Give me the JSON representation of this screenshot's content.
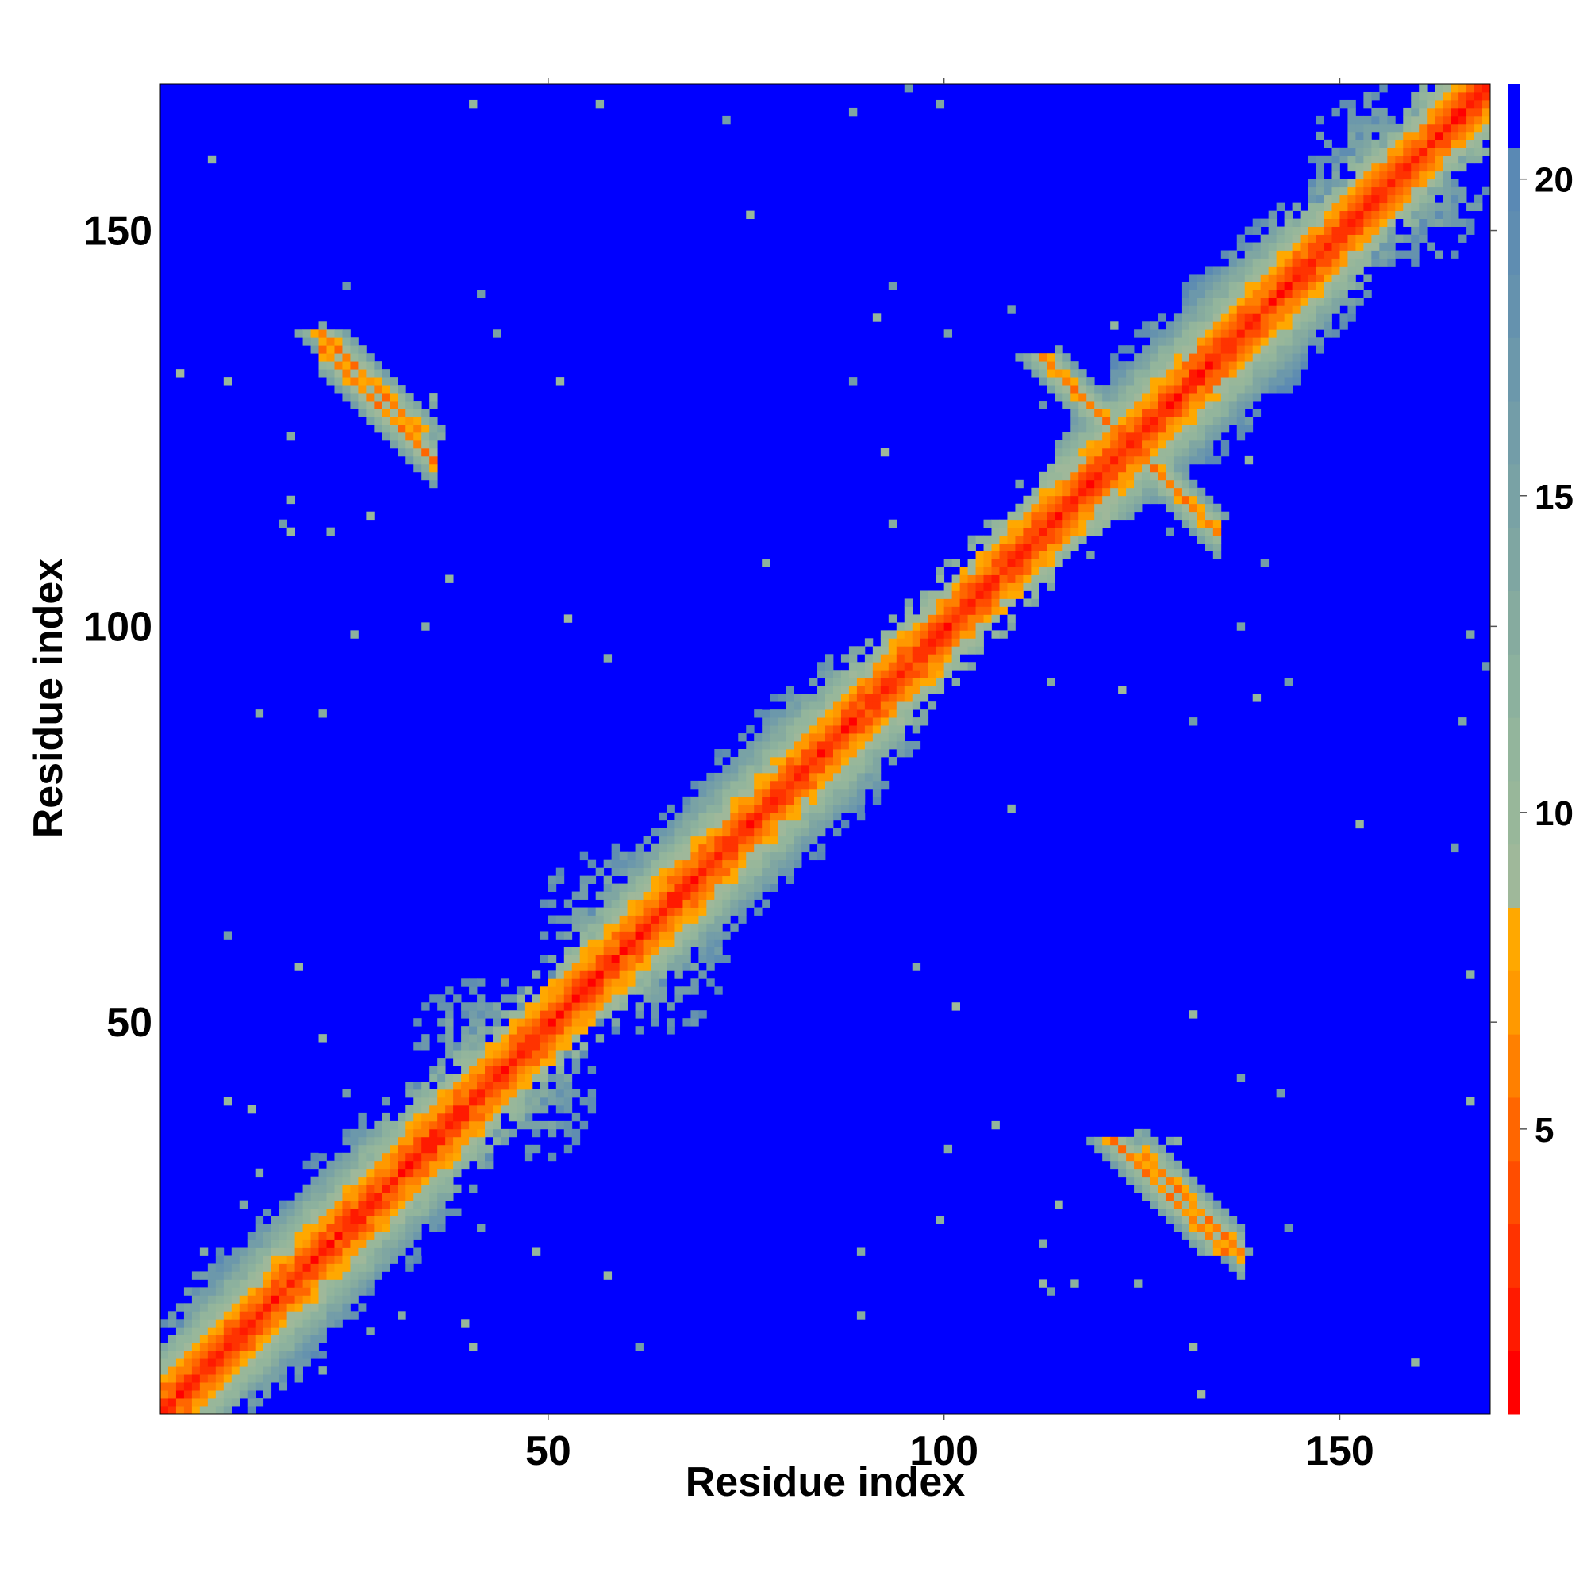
{
  "chart_data": {
    "type": "heatmap",
    "title": "",
    "xlabel": "Residue index",
    "ylabel": "Residue index",
    "xlim": [
      1,
      168
    ],
    "ylim": [
      1,
      168
    ],
    "xticks": [
      50,
      100,
      150
    ],
    "yticks": [
      50,
      100,
      150
    ],
    "colorbar": {
      "range": [
        1,
        21
      ],
      "ticks": [
        5,
        10,
        15,
        20
      ],
      "levels": [
        {
          "value": 1,
          "color": "#ff0000"
        },
        {
          "value": 2,
          "color": "#ff1a00"
        },
        {
          "value": 3,
          "color": "#ff3300"
        },
        {
          "value": 4,
          "color": "#ff4d00"
        },
        {
          "value": 5,
          "color": "#ff6600"
        },
        {
          "value": 6,
          "color": "#ff8000"
        },
        {
          "value": 7,
          "color": "#ff9900"
        },
        {
          "value": 8,
          "color": "#ffa800"
        },
        {
          "value": 9,
          "color": "#9fb89a"
        },
        {
          "value": 10,
          "color": "#98b79a"
        },
        {
          "value": 11,
          "color": "#93b59c"
        },
        {
          "value": 12,
          "color": "#8cb19e"
        },
        {
          "value": 13,
          "color": "#86ab9f"
        },
        {
          "value": 14,
          "color": "#7fa6a2"
        },
        {
          "value": 15,
          "color": "#79a2a5"
        },
        {
          "value": 16,
          "color": "#739da8"
        },
        {
          "value": 17,
          "color": "#6c98ab"
        },
        {
          "value": 18,
          "color": "#6592ae"
        },
        {
          "value": 19,
          "color": "#5f8db1"
        },
        {
          "value": 20,
          "color": "#5a89b4"
        },
        {
          "value": 21,
          "color": "#0000ff"
        }
      ]
    },
    "series_description": "Residue-residue distance map, symmetric about the diagonal",
    "features": [
      {
        "kind": "diagonal",
        "from": 1,
        "to": 168
      },
      {
        "kind": "anti",
        "cx": 27,
        "cy": 131,
        "half_len": 6
      },
      {
        "kind": "anti",
        "cx": 128,
        "cy": 28,
        "half_len": 7
      },
      {
        "kind": "anti",
        "cx": 122,
        "cy": 124,
        "half_len": 10
      },
      {
        "kind": "blob",
        "cx": 45,
        "cy": 42,
        "r": 11
      },
      {
        "kind": "blob",
        "cx": 58,
        "cy": 62,
        "r": 10
      },
      {
        "kind": "blob",
        "cx": 10,
        "cy": 12,
        "r": 8
      },
      {
        "kind": "blob",
        "cx": 155,
        "cy": 158,
        "r": 10
      }
    ]
  }
}
